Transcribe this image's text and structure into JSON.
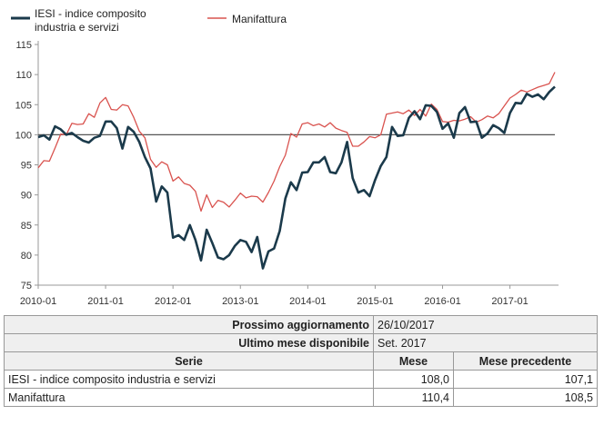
{
  "chart_data": {
    "type": "line",
    "title": "",
    "xlabel": "",
    "ylabel": "",
    "ylim": [
      75,
      115
    ],
    "yticks": [
      75,
      80,
      85,
      90,
      95,
      100,
      105,
      110,
      115
    ],
    "xticks": [
      "2010-01",
      "2011-01",
      "2012-01",
      "2013-01",
      "2014-01",
      "2015-01",
      "2016-01",
      "2017-01"
    ],
    "reference_line": 100,
    "grid": false,
    "legend": "top-left",
    "x_start": "2010-01",
    "x_end": "2017-09",
    "series": [
      {
        "name": "IESI - indice composito industria e servizi",
        "color": "#1b3a4b",
        "values": [
          99.6,
          99.9,
          99.2,
          101.4,
          100.9,
          100.0,
          100.3,
          99.6,
          99.0,
          98.7,
          99.5,
          99.8,
          102.2,
          102.2,
          101.1,
          97.7,
          101.3,
          100.5,
          98.8,
          96.3,
          94.4,
          88.9,
          91.4,
          90.4,
          82.9,
          83.3,
          82.5,
          85.0,
          82.5,
          79.1,
          84.2,
          82.0,
          79.6,
          79.3,
          80.0,
          81.5,
          82.5,
          82.2,
          80.5,
          83.0,
          77.8,
          80.6,
          81.1,
          84.0,
          89.4,
          92.1,
          90.8,
          93.7,
          93.8,
          95.4,
          95.4,
          96.3,
          93.8,
          93.6,
          95.4,
          98.8,
          92.8,
          90.4,
          90.8,
          89.8,
          92.5,
          94.8,
          96.3,
          101.3,
          99.8,
          99.9,
          102.8,
          103.9,
          102.6,
          104.9,
          104.8,
          103.8,
          101.0,
          101.9,
          99.5,
          103.6,
          104.6,
          102.1,
          102.2,
          99.5,
          100.2,
          101.6,
          101.1,
          100.3,
          103.6,
          105.3,
          105.2,
          106.8,
          106.3,
          106.7,
          105.9,
          107.1,
          108.0
        ]
      },
      {
        "name": "Manifattura",
        "color": "#d9534f",
        "values": [
          94.5,
          95.7,
          95.6,
          97.8,
          100.1,
          100.0,
          101.9,
          101.7,
          101.8,
          103.5,
          102.9,
          105.3,
          106.2,
          104.2,
          104.1,
          105.0,
          104.8,
          102.9,
          100.6,
          99.5,
          95.9,
          94.6,
          95.5,
          95.0,
          92.3,
          93.0,
          91.9,
          91.6,
          90.6,
          87.3,
          90.0,
          87.9,
          89.1,
          88.8,
          88.0,
          89.1,
          90.3,
          89.5,
          89.8,
          89.7,
          88.8,
          90.4,
          92.3,
          94.7,
          96.6,
          100.2,
          99.6,
          101.8,
          102.0,
          101.5,
          101.8,
          101.3,
          102.0,
          101.1,
          100.7,
          100.4,
          98.1,
          98.1,
          98.8,
          99.7,
          99.5,
          100.0,
          103.4,
          103.6,
          103.8,
          103.5,
          104.1,
          103.2,
          104.2,
          103.1,
          105.1,
          104.2,
          102.2,
          102.1,
          102.4,
          102.3,
          102.6,
          103.0,
          102.1,
          102.5,
          103.1,
          102.8,
          103.5,
          104.8,
          106.1,
          106.7,
          107.4,
          107.1,
          107.5,
          107.9,
          108.2,
          108.5,
          110.4
        ]
      }
    ]
  },
  "table": {
    "next_update_label": "Prossimo aggiornamento",
    "next_update_value": "26/10/2017",
    "last_month_label": "Ultimo mese disponibile",
    "last_month_value": "Set. 2017",
    "col_series": "Serie",
    "col_month": "Mese",
    "col_prev": "Mese precedente",
    "rows": [
      {
        "serie": "IESI - indice composito industria e servizi",
        "mese": "108,0",
        "prec": "107,1"
      },
      {
        "serie": "Manifattura",
        "mese": "110,4",
        "prec": "108,5"
      }
    ]
  },
  "legend": {
    "item1_line1": "IESI - indice composito",
    "item1_line2": "industria e servizi",
    "item2": "Manifattura"
  }
}
